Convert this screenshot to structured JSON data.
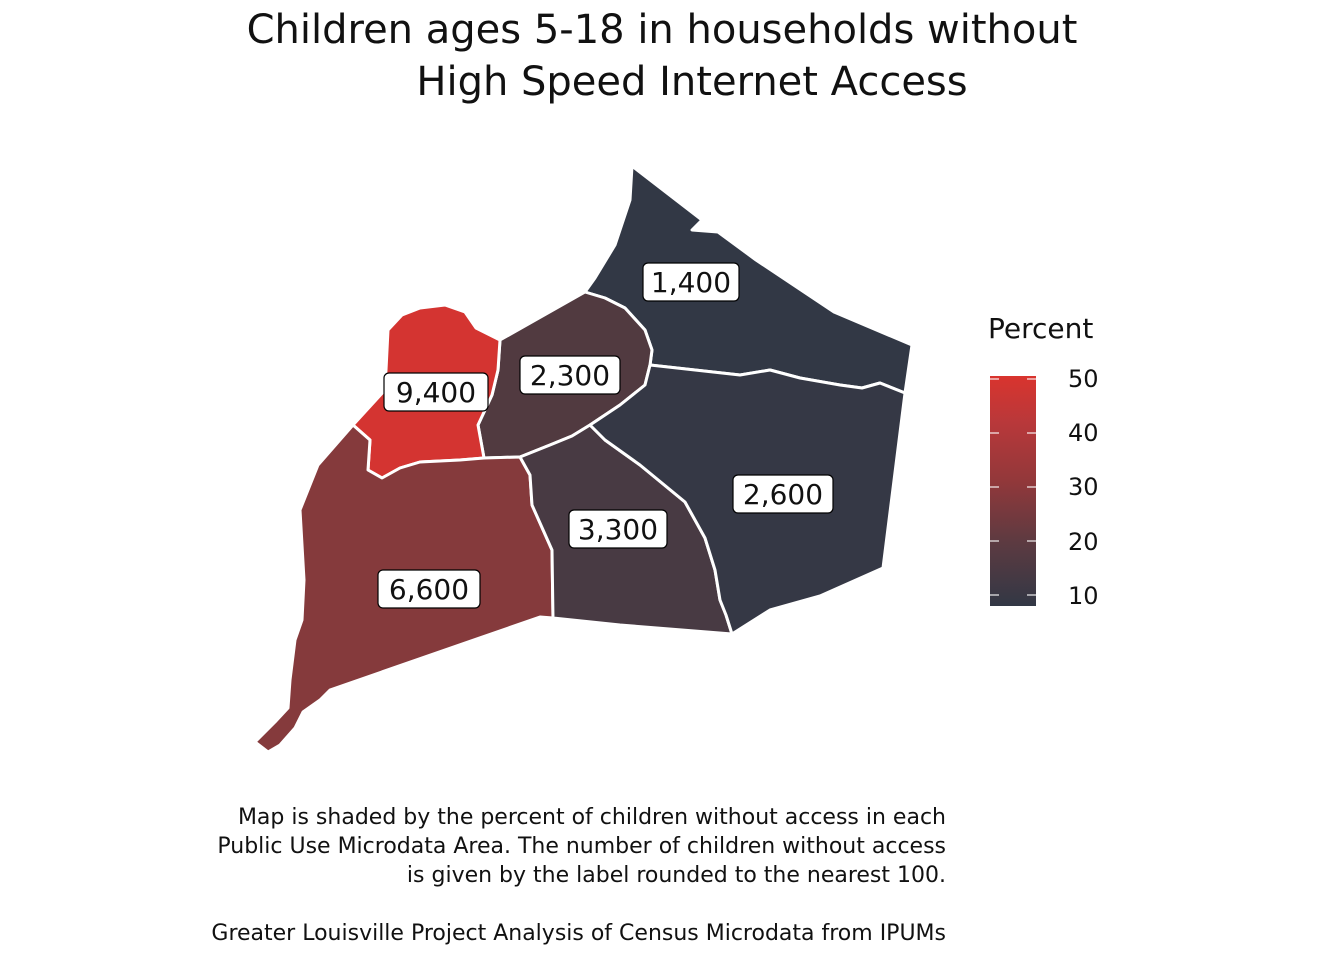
{
  "title_line1": "Children ages 5-18 in households without",
  "title_line2": "High Speed Internet Access",
  "legend": {
    "title": "Percent",
    "ticks": [
      "50",
      "40",
      "30",
      "20",
      "10"
    ],
    "colors": {
      "high": "#d9342e",
      "low": "#323845"
    }
  },
  "regions": [
    {
      "label": "1,400",
      "color": "#323845"
    },
    {
      "label": "2,300",
      "color": "#513a40"
    },
    {
      "label": "9,400",
      "color": "#d43431"
    },
    {
      "label": "6,600",
      "color": "#853a3c"
    },
    {
      "label": "3,300",
      "color": "#483a43"
    },
    {
      "label": "2,600",
      "color": "#353845"
    }
  ],
  "caption": {
    "line1": "Map is shaded by the percent of children without access in each",
    "line2": "Public Use Microdata Area. The number of children without access",
    "line3": "is given by the label rounded to the nearest 100.",
    "source": "Greater Louisville Project Analysis of Census Microdata from IPUMs"
  }
}
